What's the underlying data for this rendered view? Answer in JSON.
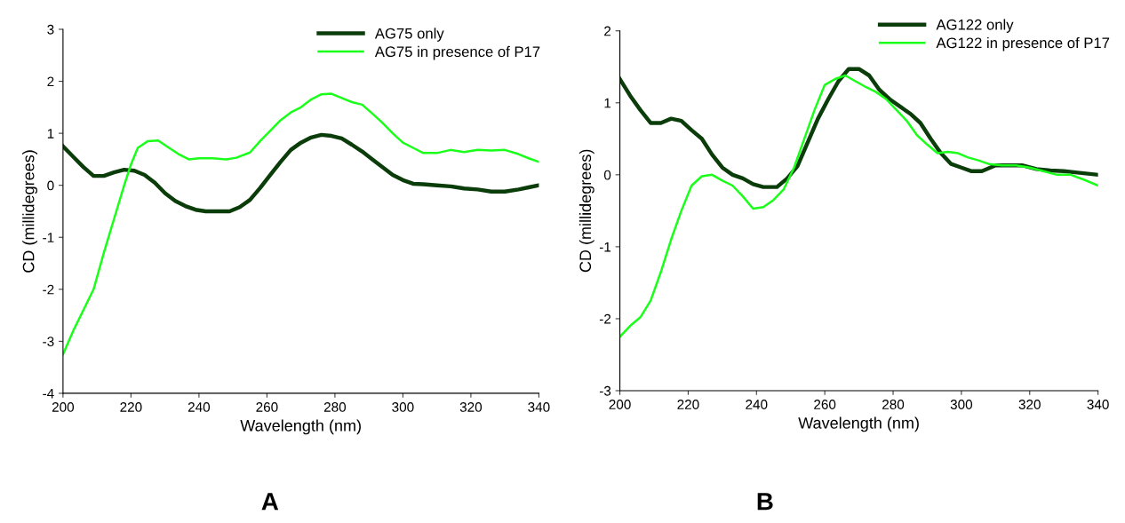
{
  "chart_data": [
    {
      "type": "line",
      "xlabel": "Wavelength (nm)",
      "ylabel": "CD (millidegrees)",
      "xlim": [
        200,
        340
      ],
      "xticks": [
        200,
        220,
        240,
        260,
        280,
        300,
        320,
        340
      ],
      "ylim": [
        -4,
        3
      ],
      "yticks": [
        -4,
        -3,
        -2,
        -1,
        0,
        1,
        2,
        3
      ],
      "grid": false,
      "legend": "top right",
      "annotations": [
        "A"
      ],
      "series": [
        {
          "name": "AG75 only",
          "color": "#0b3d0b",
          "x": [
            200,
            203,
            206,
            209,
            212,
            215,
            218,
            221,
            224,
            227,
            230,
            233,
            236,
            239,
            242,
            246,
            249,
            252,
            255,
            258,
            261,
            264,
            267,
            270,
            273,
            276,
            279,
            282,
            285,
            288,
            291,
            294,
            297,
            300,
            303,
            306,
            310,
            314,
            318,
            322,
            326,
            330,
            334,
            337,
            340
          ],
          "values": [
            0.75,
            0.55,
            0.35,
            0.18,
            0.18,
            0.25,
            0.3,
            0.28,
            0.2,
            0.05,
            -0.15,
            -0.3,
            -0.4,
            -0.47,
            -0.5,
            -0.5,
            -0.5,
            -0.42,
            -0.28,
            -0.05,
            0.2,
            0.45,
            0.68,
            0.82,
            0.92,
            0.97,
            0.95,
            0.9,
            0.78,
            0.65,
            0.5,
            0.35,
            0.2,
            0.1,
            0.03,
            0.02,
            0.0,
            -0.02,
            -0.06,
            -0.08,
            -0.12,
            -0.12,
            -0.08,
            -0.04,
            0.0
          ]
        },
        {
          "name": "AG75 in presence of P17",
          "color": "#1aff1a",
          "x": [
            200,
            203,
            206,
            209,
            212,
            215,
            218,
            220,
            222,
            225,
            228,
            231,
            234,
            237,
            240,
            244,
            248,
            251,
            255,
            258,
            261,
            264,
            267,
            270,
            273,
            276,
            279,
            282,
            285,
            288,
            291,
            294,
            297,
            300,
            303,
            306,
            310,
            314,
            318,
            322,
            326,
            330,
            334,
            337,
            340
          ],
          "values": [
            -3.25,
            -2.8,
            -2.4,
            -2.0,
            -1.3,
            -0.65,
            0.0,
            0.4,
            0.72,
            0.85,
            0.86,
            0.73,
            0.6,
            0.5,
            0.52,
            0.52,
            0.5,
            0.53,
            0.63,
            0.85,
            1.05,
            1.25,
            1.4,
            1.5,
            1.65,
            1.75,
            1.76,
            1.68,
            1.6,
            1.55,
            1.38,
            1.2,
            1.0,
            0.82,
            0.72,
            0.62,
            0.62,
            0.68,
            0.64,
            0.68,
            0.67,
            0.68,
            0.6,
            0.52,
            0.45
          ]
        }
      ]
    },
    {
      "type": "line",
      "xlabel": "Wavelength (nm)",
      "ylabel": "CD (millidegrees)",
      "xlim": [
        200,
        340
      ],
      "xticks": [
        200,
        220,
        240,
        260,
        280,
        300,
        320,
        340
      ],
      "ylim": [
        -3,
        2
      ],
      "yticks": [
        -3,
        -2,
        -1,
        0,
        1,
        2
      ],
      "grid": false,
      "legend": "top right",
      "annotations": [
        "B"
      ],
      "series": [
        {
          "name": "AG122 only",
          "color": "#0b3d0b",
          "x": [
            200,
            203,
            206,
            209,
            212,
            215,
            218,
            221,
            224,
            227,
            230,
            233,
            236,
            239,
            242,
            246,
            249,
            252,
            255,
            258,
            261,
            264,
            267,
            270,
            273,
            276,
            279,
            282,
            285,
            288,
            291,
            294,
            297,
            300,
            303,
            306,
            310,
            314,
            318,
            322,
            326,
            330,
            334,
            340
          ],
          "values": [
            1.33,
            1.1,
            0.9,
            0.72,
            0.72,
            0.78,
            0.75,
            0.62,
            0.5,
            0.28,
            0.1,
            0.0,
            -0.05,
            -0.13,
            -0.17,
            -0.17,
            -0.05,
            0.12,
            0.45,
            0.78,
            1.05,
            1.3,
            1.47,
            1.47,
            1.38,
            1.18,
            1.05,
            0.95,
            0.85,
            0.72,
            0.5,
            0.3,
            0.15,
            0.1,
            0.05,
            0.05,
            0.13,
            0.13,
            0.13,
            0.08,
            0.06,
            0.05,
            0.03,
            0.0
          ]
        },
        {
          "name": "AG122 in presence of P17",
          "color": "#1aff1a",
          "x": [
            200,
            203,
            206,
            209,
            212,
            215,
            218,
            221,
            224,
            227,
            230,
            233,
            236,
            239,
            242,
            245,
            248,
            251,
            254,
            257,
            260,
            263,
            266,
            269,
            272,
            275,
            278,
            281,
            284,
            287,
            290,
            293,
            296,
            299,
            302,
            305,
            308,
            312,
            316,
            320,
            324,
            328,
            332,
            336,
            340
          ],
          "values": [
            -2.25,
            -2.1,
            -1.98,
            -1.75,
            -1.35,
            -0.9,
            -0.5,
            -0.15,
            -0.02,
            0.0,
            -0.08,
            -0.15,
            -0.3,
            -0.47,
            -0.45,
            -0.35,
            -0.2,
            0.1,
            0.5,
            0.9,
            1.25,
            1.33,
            1.38,
            1.3,
            1.22,
            1.15,
            1.05,
            0.9,
            0.75,
            0.55,
            0.42,
            0.3,
            0.32,
            0.3,
            0.24,
            0.2,
            0.15,
            0.13,
            0.13,
            0.1,
            0.05,
            0.0,
            0.0,
            -0.07,
            -0.15
          ]
        }
      ]
    }
  ]
}
